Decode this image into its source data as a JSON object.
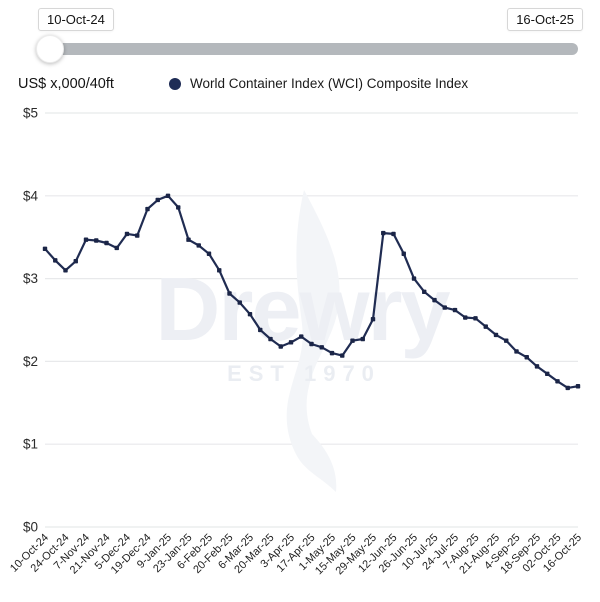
{
  "slider": {
    "start_label": "10-Oct-24",
    "end_label": "16-Oct-25"
  },
  "legend": {
    "unit_label": "US$ x,000/40ft",
    "series_label": "World Container Index (WCI) Composite Index"
  },
  "watermark": {
    "name": "Drewry",
    "subtitle": "EST 1970"
  },
  "colors": {
    "series": "#202c52",
    "marker": "#1b2547",
    "legend_dot": "#1e2c55",
    "grid": "#e8e9eb",
    "axis_text": "#222222",
    "slider_track": "#b4b8bc",
    "watermark": "#edeff4"
  },
  "chart_data": {
    "type": "line",
    "title": "",
    "xlabel": "",
    "ylabel": "US$ x,000/40ft",
    "ylim": [
      0,
      5
    ],
    "yticks": [
      "$0",
      "$1",
      "$2",
      "$3",
      "$4",
      "$5"
    ],
    "grid": true,
    "legend_position": "top",
    "x_ticks_every": 2,
    "series": [
      {
        "name": "World Container Index (WCI) Composite Index",
        "x": [
          "10-Oct-24",
          "17-Oct-24",
          "24-Oct-24",
          "31-Oct-24",
          "7-Nov-24",
          "14-Nov-24",
          "21-Nov-24",
          "28-Nov-24",
          "5-Dec-24",
          "12-Dec-24",
          "19-Dec-24",
          "2-Jan-25",
          "9-Jan-25",
          "16-Jan-25",
          "23-Jan-25",
          "30-Jan-25",
          "6-Feb-25",
          "13-Feb-25",
          "20-Feb-25",
          "27-Feb-25",
          "6-Mar-25",
          "13-Mar-25",
          "20-Mar-25",
          "27-Mar-25",
          "3-Apr-25",
          "10-Apr-25",
          "17-Apr-25",
          "24-Apr-25",
          "1-May-25",
          "8-May-25",
          "15-May-25",
          "22-May-25",
          "29-May-25",
          "5-Jun-25",
          "12-Jun-25",
          "19-Jun-25",
          "26-Jun-25",
          "3-Jul-25",
          "10-Jul-25",
          "17-Jul-25",
          "24-Jul-25",
          "31-Jul-25",
          "7-Aug-25",
          "14-Aug-25",
          "21-Aug-25",
          "28-Aug-25",
          "4-Sep-25",
          "11-Sep-25",
          "18-Sep-25",
          "25-Sep-25",
          "02-Oct-25",
          "9-Oct-25",
          "16-Oct-25"
        ],
        "values": [
          3.36,
          3.22,
          3.1,
          3.21,
          3.47,
          3.46,
          3.43,
          3.37,
          3.54,
          3.52,
          3.84,
          3.95,
          4.0,
          3.86,
          3.47,
          3.4,
          3.3,
          3.1,
          2.82,
          2.71,
          2.57,
          2.38,
          2.27,
          2.18,
          2.23,
          2.3,
          2.21,
          2.17,
          2.1,
          2.07,
          2.25,
          2.27,
          2.51,
          3.55,
          3.54,
          3.3,
          3.0,
          2.84,
          2.74,
          2.65,
          2.62,
          2.53,
          2.52,
          2.42,
          2.32,
          2.25,
          2.12,
          2.05,
          1.94,
          1.85,
          1.76,
          1.68,
          1.7
        ]
      }
    ]
  }
}
